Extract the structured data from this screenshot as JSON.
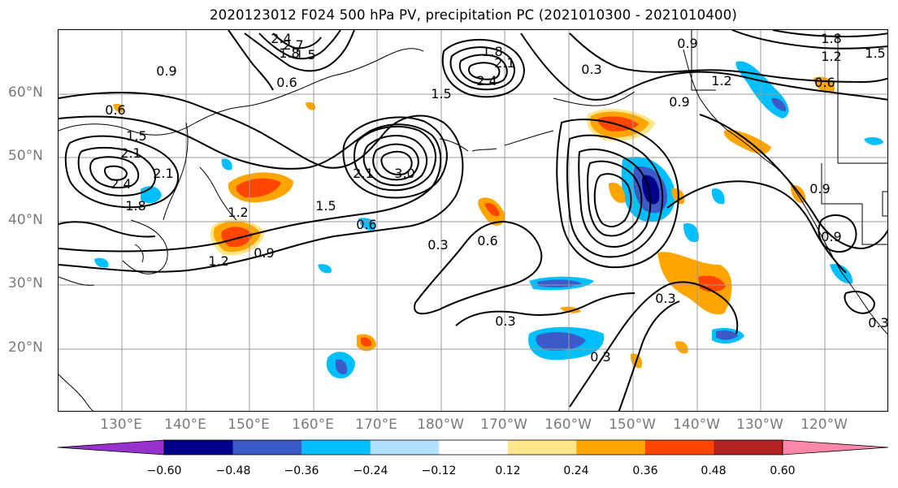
{
  "title": "2020123012 F024 500 hPa PV, precipitation PC (2021010300 - 2021010400)",
  "lat_labels": [
    "60°N",
    "50°N",
    "40°N",
    "30°N",
    "20°N"
  ],
  "lon_labels": [
    "130°E",
    "140°E",
    "150°E",
    "160°E",
    "170°E",
    "180°W",
    "170°W",
    "160°W",
    "150°W",
    "140°W",
    "130°W",
    "120°W"
  ],
  "contour_labels": [
    "0.9",
    "2.4",
    "2.7",
    "1.8",
    "1.5",
    "0.6",
    "0.6",
    "2.1",
    "1.5",
    "2.4",
    "1.8",
    "2.1",
    "1.2",
    "1.5",
    "0.6",
    "0.9",
    "1.2",
    "3.0",
    "2.1",
    "0.3",
    "0.6",
    "0.3",
    "1.5",
    "1.8",
    "2.1",
    "2.4",
    "0.3",
    "0.9",
    "1.2",
    "0.9",
    "0.6",
    "1.8",
    "1.2",
    "1.5",
    "0.9",
    "0.9",
    "0.3",
    "0.3",
    "0.3"
  ],
  "colorbar": {
    "ticks": [
      "−0.60",
      "−0.48",
      "−0.36",
      "−0.24",
      "−0.12",
      "0.12",
      "0.24",
      "0.36",
      "0.48",
      "0.60"
    ],
    "colors": [
      "#9932cc",
      "#00008b",
      "#3c5ac8",
      "#00bfff",
      "#b0e2ff",
      "#ffffff",
      "#ffe68a",
      "#ffa500",
      "#ff4500",
      "#b22222",
      "#ff88aa"
    ]
  }
}
